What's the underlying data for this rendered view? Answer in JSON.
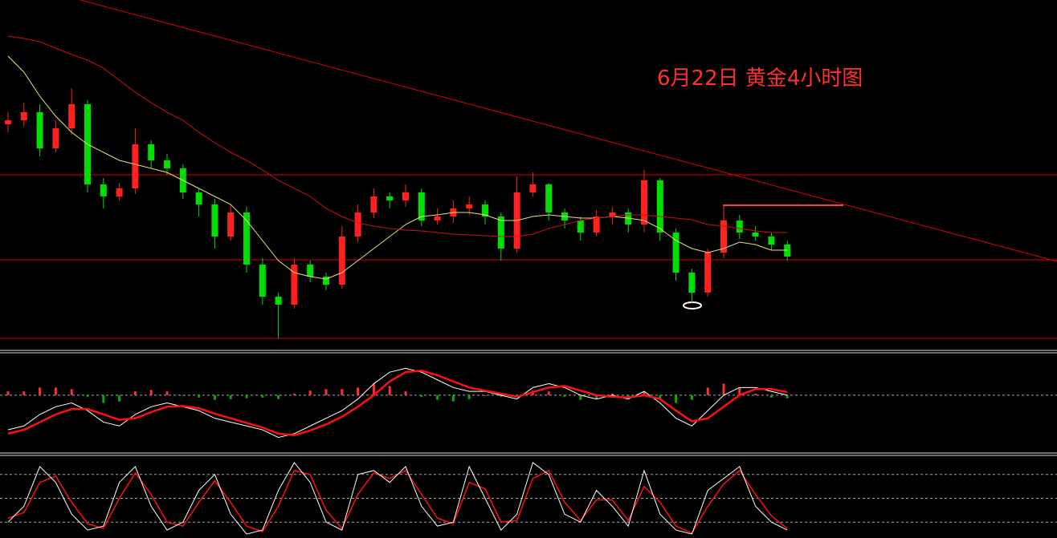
{
  "chart_data": [
    {
      "type": "candlestick",
      "title": "6月22日 黄金4小时图",
      "title_color": "#ff3030",
      "ylim": [
        0,
        440
      ],
      "up_color": "#ff2020",
      "down_color": "#00e000",
      "open": [
        285,
        290,
        300,
        255,
        280,
        310,
        210,
        195,
        205,
        260,
        240,
        230,
        200,
        185,
        145,
        175,
        110,
        70,
        60,
        110,
        95,
        85,
        145,
        175,
        195,
        190,
        200,
        165,
        170,
        180,
        185,
        170,
        130,
        200,
        210,
        175,
        165,
        150,
        170,
        175,
        160,
        215,
        150,
        100,
        75,
        125,
        165,
        150,
        145,
        135
      ],
      "high": [
        300,
        312,
        310,
        290,
        330,
        315,
        218,
        212,
        280,
        265,
        248,
        235,
        205,
        192,
        185,
        182,
        118,
        75,
        118,
        115,
        100,
        158,
        185,
        205,
        200,
        210,
        205,
        180,
        190,
        195,
        190,
        175,
        220,
        225,
        212,
        180,
        170,
        178,
        182,
        180,
        228,
        218,
        155,
        105,
        130,
        185,
        172,
        158,
        150,
        140
      ],
      "low": [
        275,
        282,
        245,
        250,
        272,
        200,
        180,
        190,
        198,
        230,
        222,
        192,
        170,
        130,
        140,
        100,
        60,
        18,
        55,
        88,
        78,
        80,
        138,
        168,
        180,
        182,
        158,
        160,
        162,
        172,
        160,
        115,
        125,
        195,
        165,
        155,
        140,
        145,
        160,
        150,
        150,
        140,
        90,
        62,
        70,
        118,
        142,
        140,
        128,
        115
      ],
      "close": [
        290,
        300,
        255,
        280,
        310,
        210,
        195,
        205,
        260,
        240,
        230,
        200,
        185,
        145,
        175,
        110,
        70,
        60,
        110,
        95,
        85,
        145,
        175,
        195,
        190,
        200,
        165,
        170,
        180,
        185,
        170,
        130,
        200,
        210,
        175,
        165,
        150,
        170,
        175,
        160,
        215,
        150,
        100,
        75,
        125,
        165,
        150,
        145,
        135,
        120
      ],
      "ma_lines": [
        {
          "color": "#e8e080",
          "values": [
            370,
            350,
            320,
            295,
            275,
            260,
            250,
            240,
            235,
            230,
            225,
            215,
            205,
            195,
            185,
            165,
            140,
            115,
            100,
            95,
            92,
            100,
            115,
            130,
            145,
            160,
            170,
            172,
            175,
            175,
            172,
            165,
            165,
            170,
            172,
            170,
            168,
            168,
            170,
            168,
            165,
            155,
            140,
            130,
            125,
            130,
            138,
            135,
            128,
            128
          ]
        },
        {
          "color": "#d01010",
          "values": [
            395,
            392,
            388,
            380,
            372,
            365,
            355,
            340,
            325,
            312,
            300,
            290,
            275,
            262,
            250,
            240,
            228,
            215,
            205,
            195,
            180,
            170,
            162,
            158,
            155,
            153,
            152,
            150,
            148,
            147,
            146,
            145,
            145,
            148,
            155,
            160,
            165,
            168,
            170,
            172,
            172,
            170,
            168,
            166,
            160,
            158,
            155,
            152,
            150,
            150
          ]
        }
      ],
      "levels": [
        222,
        116,
        18
      ],
      "level_color": "#e00000"
    },
    {
      "type": "macd",
      "ylim": [
        -70,
        50
      ],
      "line_color": "#ffffff",
      "signal_color": "#ff1010",
      "pos_color": "#ff3030",
      "neg_color": "#00b000",
      "dif": [
        -45,
        -40,
        -25,
        -15,
        -10,
        -20,
        -35,
        -40,
        -25,
        -15,
        -10,
        -15,
        -20,
        -30,
        -35,
        -40,
        -45,
        -55,
        -50,
        -40,
        -30,
        -20,
        -5,
        15,
        30,
        35,
        30,
        20,
        10,
        5,
        5,
        0,
        -5,
        10,
        15,
        10,
        0,
        -5,
        0,
        -5,
        5,
        -10,
        -30,
        -40,
        -20,
        0,
        10,
        10,
        5,
        0
      ],
      "dea": [
        -50,
        -45,
        -35,
        -25,
        -18,
        -18,
        -25,
        -32,
        -30,
        -22,
        -15,
        -14,
        -17,
        -24,
        -30,
        -36,
        -42,
        -50,
        -52,
        -46,
        -38,
        -28,
        -15,
        0,
        18,
        30,
        32,
        26,
        18,
        10,
        6,
        2,
        -2,
        4,
        10,
        12,
        6,
        0,
        -2,
        -3,
        0,
        -5,
        -20,
        -34,
        -30,
        -15,
        0,
        8,
        8,
        4
      ],
      "hist": [
        5,
        5,
        10,
        10,
        8,
        -2,
        -10,
        -8,
        5,
        7,
        5,
        -1,
        -3,
        -6,
        -5,
        -4,
        -3,
        -5,
        2,
        6,
        8,
        8,
        10,
        15,
        12,
        5,
        -2,
        -6,
        -8,
        -5,
        -1,
        -2,
        -3,
        6,
        5,
        -2,
        -6,
        -5,
        2,
        -2,
        5,
        -5,
        -10,
        -6,
        10,
        15,
        10,
        2,
        -3,
        -4
      ]
    },
    {
      "type": "stochastic",
      "ylim": [
        0,
        100
      ],
      "k_color": "#ffffff",
      "d_color": "#ff1010",
      "k": [
        20,
        40,
        90,
        70,
        30,
        10,
        15,
        70,
        90,
        40,
        10,
        20,
        60,
        80,
        30,
        5,
        10,
        60,
        95,
        70,
        20,
        10,
        80,
        85,
        70,
        90,
        40,
        15,
        20,
        90,
        50,
        10,
        30,
        95,
        80,
        30,
        20,
        60,
        40,
        15,
        85,
        30,
        10,
        5,
        60,
        75,
        90,
        40,
        20,
        10
      ],
      "d": [
        25,
        32,
        70,
        78,
        45,
        18,
        12,
        50,
        82,
        55,
        20,
        15,
        45,
        72,
        45,
        15,
        8,
        40,
        85,
        80,
        35,
        12,
        55,
        82,
        75,
        85,
        55,
        25,
        18,
        70,
        62,
        20,
        22,
        75,
        85,
        45,
        22,
        48,
        48,
        22,
        65,
        45,
        15,
        6,
        40,
        68,
        85,
        55,
        28,
        12
      ],
      "levels": [
        20,
        50,
        80
      ]
    }
  ]
}
